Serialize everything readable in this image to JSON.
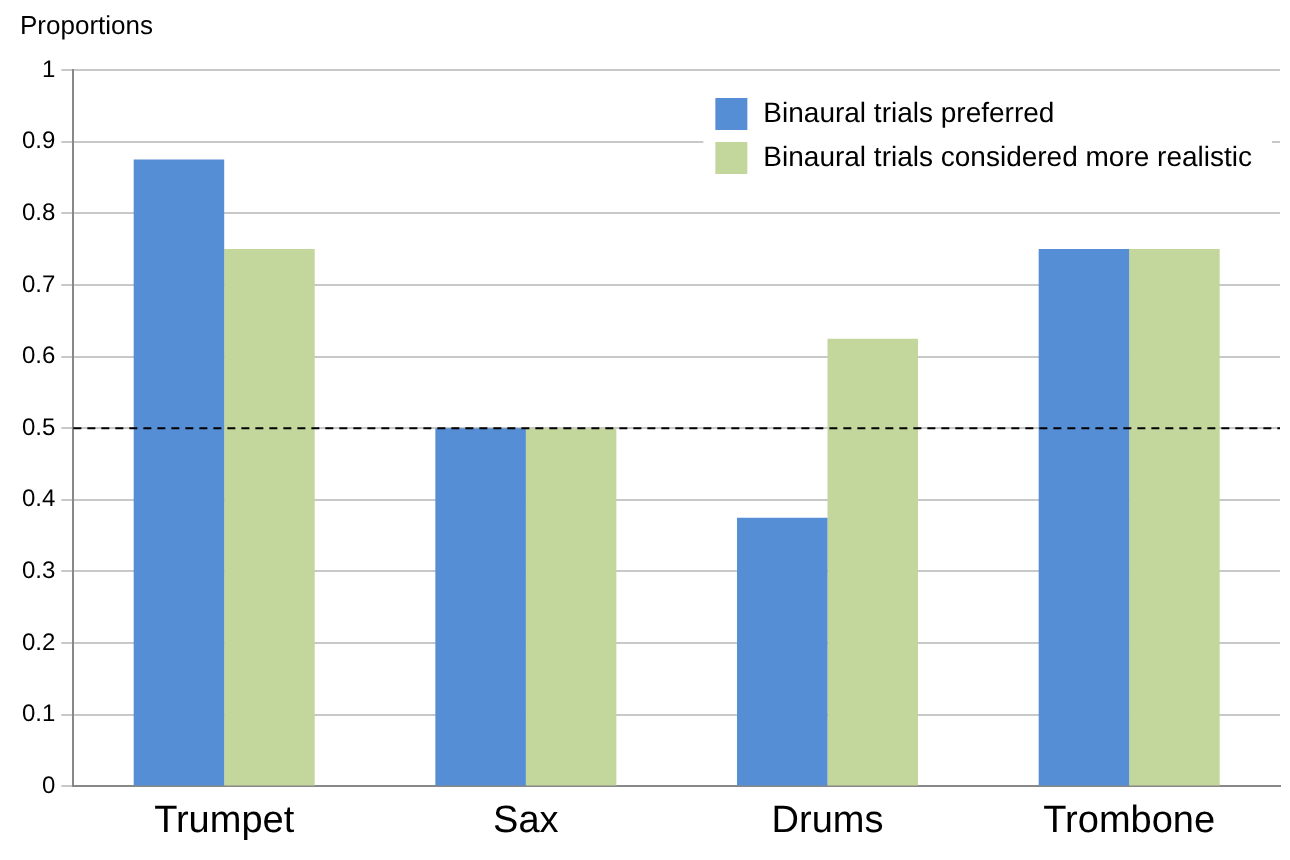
{
  "chart_data": {
    "type": "bar",
    "ylabel": "Proportions",
    "categories": [
      "Trumpet",
      "Sax",
      "Drums",
      "Trombone"
    ],
    "series": [
      {
        "name": "Binaural trials preferred",
        "color": "#558ed5",
        "values": [
          0.875,
          0.5,
          0.375,
          0.75
        ]
      },
      {
        "name": "Binaural trials considered more realistic",
        "color": "#c3d69b",
        "values": [
          0.75,
          0.5,
          0.625,
          0.75
        ]
      }
    ],
    "ylim": [
      0,
      1
    ],
    "yticks": [
      0,
      0.1,
      0.2,
      0.3,
      0.4,
      0.5,
      0.6,
      0.7,
      0.8,
      0.9,
      1
    ],
    "grid": "y",
    "legend": "top right",
    "ref_lines": [
      {
        "axis": "y",
        "value": 0.5,
        "line_style": "dashed",
        "color": "#000000"
      }
    ]
  }
}
